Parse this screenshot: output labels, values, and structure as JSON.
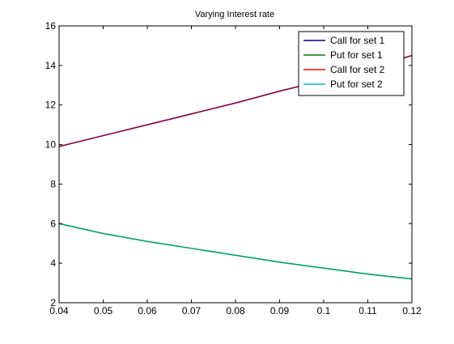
{
  "chart_data": {
    "type": "line",
    "title": "Varying Interest rate",
    "xlabel": "",
    "ylabel": "",
    "xlim": [
      0.04,
      0.12
    ],
    "ylim": [
      2,
      16
    ],
    "xticks": [
      0.04,
      0.05,
      0.06,
      0.07,
      0.08,
      0.09,
      0.1,
      0.11,
      0.12
    ],
    "xtick_labels": [
      "0.04",
      "0.05",
      "0.06",
      "0.07",
      "0.08",
      "0.09",
      "0.1",
      "0.11",
      "0.12"
    ],
    "yticks": [
      2,
      4,
      6,
      8,
      10,
      12,
      14,
      16
    ],
    "ytick_labels": [
      "2",
      "4",
      "6",
      "8",
      "10",
      "12",
      "14",
      "16"
    ],
    "grid": false,
    "legend_position": "top-right",
    "x": [
      0.04,
      0.05,
      0.06,
      0.07,
      0.08,
      0.09,
      0.1,
      0.11,
      0.12
    ],
    "series": [
      {
        "name": "Call for set 1",
        "color": "#00007f",
        "values": [
          9.9,
          10.45,
          11.0,
          11.55,
          12.1,
          12.7,
          13.25,
          13.85,
          14.5
        ]
      },
      {
        "name": "Put for set 1",
        "color": "#007f00",
        "values": [
          6.0,
          5.5,
          5.1,
          4.75,
          4.4,
          4.05,
          3.75,
          3.45,
          3.2
        ]
      },
      {
        "name": "Call for set 2",
        "color": "#ff0000",
        "values": [
          9.9,
          10.45,
          11.0,
          11.55,
          12.1,
          12.7,
          13.25,
          13.85,
          14.5
        ]
      },
      {
        "name": "Put for set 2",
        "color": "#00bfbf",
        "values": [
          6.0,
          5.5,
          5.1,
          4.75,
          4.4,
          4.05,
          3.75,
          3.45,
          3.2
        ]
      }
    ],
    "overlay_colors": {
      "call": "#7f007f",
      "put": "#009f5f"
    }
  }
}
